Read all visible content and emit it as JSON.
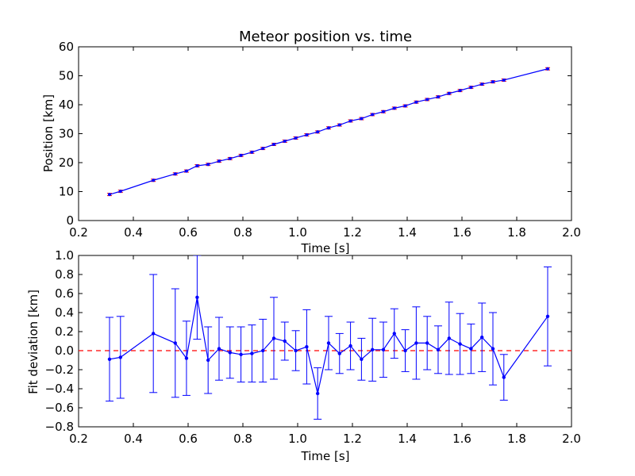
{
  "chart_data": [
    {
      "type": "line",
      "title": "Meteor position vs. time",
      "xlabel": "Time [s]",
      "ylabel": "Position [km]",
      "xlim": [
        0.2,
        2.0
      ],
      "ylim": [
        0,
        60
      ],
      "xticks": [
        "0.2",
        "0.4",
        "0.6",
        "0.8",
        "1.0",
        "1.2",
        "1.4",
        "1.6",
        "1.8",
        "2.0"
      ],
      "yticks": [
        "0",
        "10",
        "20",
        "30",
        "40",
        "50",
        "60"
      ],
      "grid": false,
      "colors": {
        "line": "#0000ff",
        "errorbar": "#ff0000",
        "marker": "#0000ff"
      },
      "x": [
        0.313,
        0.353,
        0.473,
        0.553,
        0.594,
        0.633,
        0.673,
        0.713,
        0.753,
        0.793,
        0.833,
        0.873,
        0.913,
        0.953,
        0.993,
        1.033,
        1.073,
        1.113,
        1.153,
        1.193,
        1.233,
        1.273,
        1.313,
        1.353,
        1.393,
        1.433,
        1.473,
        1.513,
        1.553,
        1.593,
        1.633,
        1.673,
        1.713,
        1.753,
        1.913
      ],
      "series": [
        {
          "values": [
            9.0,
            10.1,
            13.9,
            16.1,
            17.1,
            18.9,
            19.4,
            20.5,
            21.4,
            22.5,
            23.6,
            24.9,
            26.3,
            27.4,
            28.5,
            29.6,
            30.6,
            32.0,
            33.0,
            34.4,
            35.2,
            36.6,
            37.6,
            38.8,
            39.6,
            40.9,
            41.8,
            42.7,
            43.9,
            44.9,
            46.0,
            47.1,
            47.9,
            48.5,
            52.4
          ]
        }
      ],
      "error": 0.4
    },
    {
      "type": "line",
      "xlabel": "Time [s]",
      "ylabel": "Fit deviation [km]",
      "xlim": [
        0.2,
        2.0
      ],
      "ylim": [
        -0.8,
        1.0
      ],
      "xticks": [
        "0.2",
        "0.4",
        "0.6",
        "0.8",
        "1.0",
        "1.2",
        "1.4",
        "1.6",
        "1.8",
        "2.0"
      ],
      "yticks": [
        "−0.8",
        "−0.6",
        "−0.4",
        "−0.2",
        "0.0",
        "0.2",
        "0.4",
        "0.6",
        "0.8",
        "1.0"
      ],
      "grid": false,
      "colors": {
        "line": "#0000ff",
        "errorbar": "#0000ff",
        "reference": "#ff0000"
      },
      "reference_y": 0.0,
      "x": [
        0.313,
        0.353,
        0.473,
        0.553,
        0.594,
        0.633,
        0.673,
        0.713,
        0.753,
        0.793,
        0.833,
        0.873,
        0.913,
        0.953,
        0.993,
        1.033,
        1.073,
        1.113,
        1.153,
        1.193,
        1.233,
        1.273,
        1.313,
        1.353,
        1.393,
        1.433,
        1.473,
        1.513,
        1.553,
        1.593,
        1.633,
        1.673,
        1.713,
        1.753,
        1.913
      ],
      "series": [
        {
          "values": [
            -0.09,
            -0.07,
            0.18,
            0.08,
            -0.08,
            0.56,
            -0.1,
            0.02,
            -0.02,
            -0.04,
            -0.03,
            0.0,
            0.13,
            0.1,
            0.0,
            0.04,
            -0.45,
            0.08,
            -0.03,
            0.05,
            -0.09,
            0.01,
            0.01,
            0.18,
            0.0,
            0.08,
            0.08,
            0.01,
            0.13,
            0.07,
            0.02,
            0.14,
            0.02,
            -0.28,
            0.36
          ],
          "errors": [
            0.44,
            0.43,
            0.62,
            0.57,
            0.39,
            0.44,
            0.35,
            0.33,
            0.27,
            0.29,
            0.3,
            0.33,
            0.43,
            0.2,
            0.21,
            0.39,
            0.27,
            0.28,
            0.21,
            0.25,
            0.22,
            0.33,
            0.29,
            0.26,
            0.22,
            0.38,
            0.28,
            0.25,
            0.38,
            0.32,
            0.26,
            0.36,
            0.38,
            0.24,
            0.52
          ]
        }
      ]
    }
  ]
}
